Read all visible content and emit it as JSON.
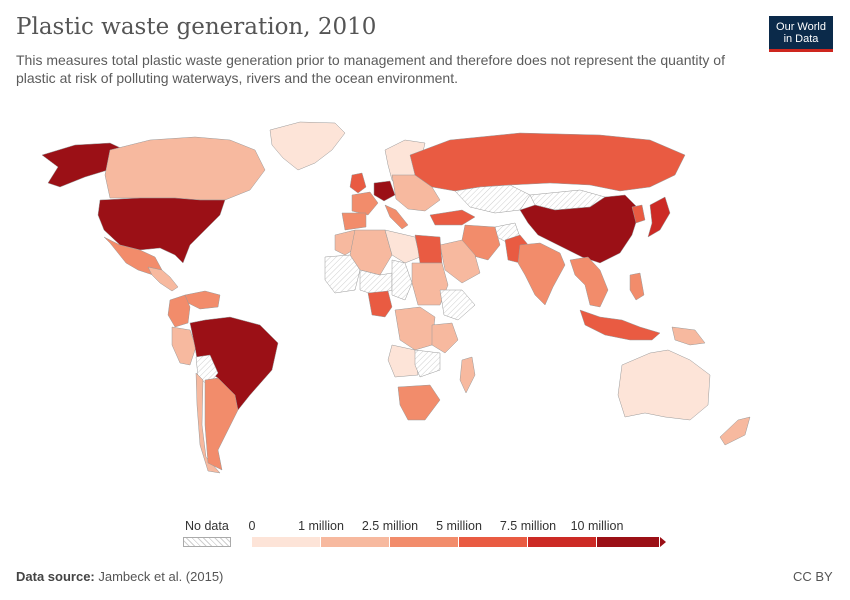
{
  "header": {
    "title": "Plastic waste generation, 2010",
    "subtitle": "This measures total plastic waste generation prior to management and therefore does not represent the quantity of plastic at risk of polluting waterways, rivers and the ocean environment."
  },
  "logo": {
    "line1": "Our World",
    "line2": "in Data"
  },
  "legend": {
    "no_data_label": "No data",
    "ticks": [
      "0",
      "1 million",
      "2.5 million",
      "5 million",
      "7.5 million",
      "10 million"
    ],
    "colors": [
      "#fde4d8",
      "#f7b99f",
      "#f28c6b",
      "#e95b42",
      "#cc2a25",
      "#9b1016"
    ]
  },
  "footer": {
    "source_label": "Data source:",
    "source_text": "Jambeck et al. (2015)",
    "license": "CC BY"
  },
  "map": {
    "regions": [
      {
        "name": "United States",
        "bin": 5
      },
      {
        "name": "Alaska",
        "bin": 5
      },
      {
        "name": "Canada",
        "bin": 1
      },
      {
        "name": "Greenland",
        "bin": 0
      },
      {
        "name": "Mexico",
        "bin": 2
      },
      {
        "name": "Central America",
        "bin": 1
      },
      {
        "name": "Brazil",
        "bin": 5
      },
      {
        "name": "Argentina",
        "bin": 2
      },
      {
        "name": "Chile",
        "bin": 1
      },
      {
        "name": "Peru",
        "bin": 1
      },
      {
        "name": "Colombia",
        "bin": 2
      },
      {
        "name": "Venezuela",
        "bin": 2
      },
      {
        "name": "Bolivia",
        "bin": "none"
      },
      {
        "name": "Russia",
        "bin": 3
      },
      {
        "name": "Scandinavia",
        "bin": 0
      },
      {
        "name": "United Kingdom",
        "bin": 3
      },
      {
        "name": "France",
        "bin": 2
      },
      {
        "name": "Spain",
        "bin": 2
      },
      {
        "name": "Italy",
        "bin": 2
      },
      {
        "name": "Germany",
        "bin": 5
      },
      {
        "name": "Eastern Europe",
        "bin": 1
      },
      {
        "name": "Turkey",
        "bin": 3
      },
      {
        "name": "Kazakhstan",
        "bin": "none"
      },
      {
        "name": "China",
        "bin": 5
      },
      {
        "name": "Mongolia",
        "bin": "none"
      },
      {
        "name": "Japan",
        "bin": 4
      },
      {
        "name": "Korea",
        "bin": 3
      },
      {
        "name": "India",
        "bin": 2
      },
      {
        "name": "Pakistan",
        "bin": 3
      },
      {
        "name": "Afghanistan",
        "bin": "none"
      },
      {
        "name": "Iran",
        "bin": 2
      },
      {
        "name": "Saudi Arabia",
        "bin": 1
      },
      {
        "name": "Egypt",
        "bin": 3
      },
      {
        "name": "Algeria",
        "bin": 1
      },
      {
        "name": "Libya",
        "bin": 0
      },
      {
        "name": "Morocco",
        "bin": 1
      },
      {
        "name": "Mali",
        "bin": "none"
      },
      {
        "name": "Niger",
        "bin": "none"
      },
      {
        "name": "Chad",
        "bin": "none"
      },
      {
        "name": "Sudan",
        "bin": 1
      },
      {
        "name": "Nigeria",
        "bin": 3
      },
      {
        "name": "Ethiopia",
        "bin": "none"
      },
      {
        "name": "DR Congo",
        "bin": 1
      },
      {
        "name": "Angola",
        "bin": 0
      },
      {
        "name": "Tanzania",
        "bin": 1
      },
      {
        "name": "Zambia",
        "bin": "none"
      },
      {
        "name": "South Africa",
        "bin": 2
      },
      {
        "name": "Madagascar",
        "bin": 1
      },
      {
        "name": "Southeast Asia",
        "bin": 2
      },
      {
        "name": "Indonesia",
        "bin": 3
      },
      {
        "name": "Philippines",
        "bin": 2
      },
      {
        "name": "Papua New Guinea",
        "bin": 1
      },
      {
        "name": "Australia",
        "bin": 0
      },
      {
        "name": "New Zealand",
        "bin": 1
      }
    ]
  }
}
